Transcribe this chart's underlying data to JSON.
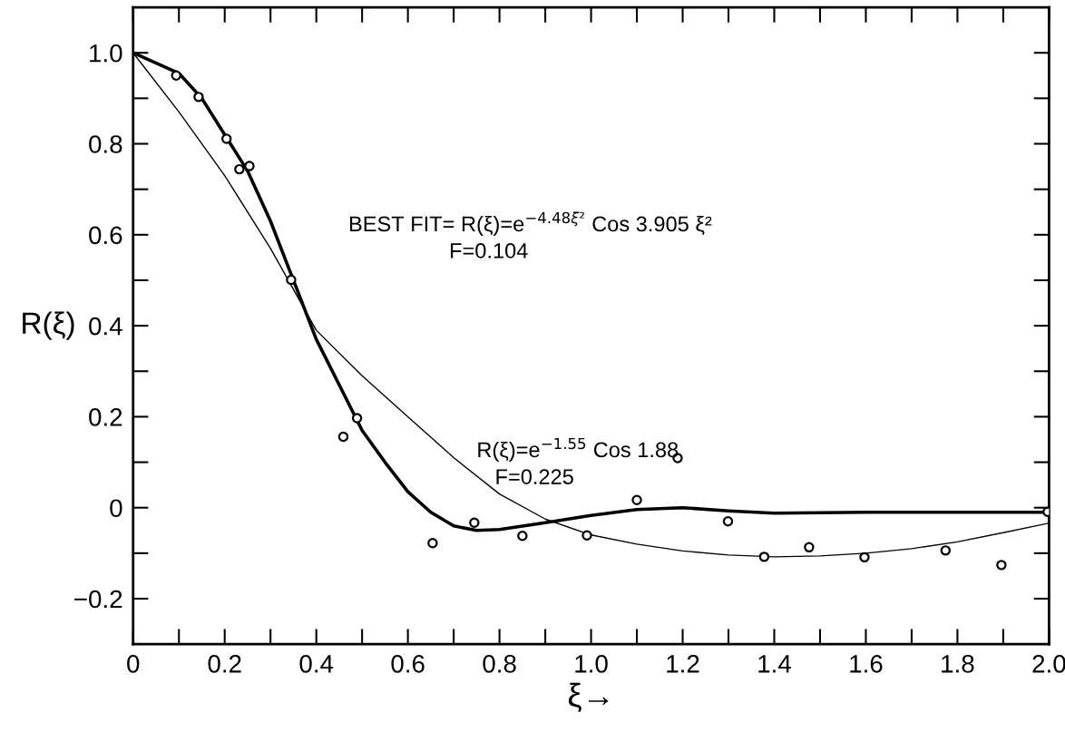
{
  "chart_data": {
    "type": "line",
    "xlabel": "ξ→",
    "ylabel": "R(ξ)",
    "xlim": [
      0,
      2.0
    ],
    "ylim": [
      -0.3,
      1.1
    ],
    "xticks": [
      0,
      0.2,
      0.4,
      0.6,
      0.8,
      {
        "value": 1.0,
        "label": "1.0"
      },
      1.2,
      1.4,
      1.6,
      1.8,
      {
        "value": 2.0,
        "label": "2.0"
      }
    ],
    "yticks": [
      {
        "value": -0.2,
        "label": "−0.2"
      },
      0,
      0.2,
      0.4,
      0.6,
      0.8,
      {
        "value": 1.0,
        "label": "1.0"
      }
    ],
    "grid": false,
    "legend": false,
    "annotations": [
      "BEST FIT= R(ξ)=e$^{−4.48ξ²}$ Cos 3.905 ξ²",
      "F=0.104",
      "R(ξ)=e$^{−1.55}$ Cos 1.88",
      "F=0.225"
    ],
    "series": [
      {
        "type": "scatter",
        "color": "#000000",
        "marker": "circle",
        "x": [
          0.094,
          0.143,
          0.204,
          0.232,
          0.254,
          0.345,
          0.459,
          0.489,
          0.654,
          0.745,
          0.85,
          0.991,
          1.1,
          1.189,
          1.299,
          1.378,
          1.476,
          1.597,
          1.774,
          1.896,
          1.997
        ],
        "values": [
          0.95,
          0.903,
          0.811,
          0.744,
          0.751,
          0.501,
          0.156,
          0.197,
          -0.078,
          -0.033,
          -0.062,
          -0.061,
          0.017,
          0.109,
          -0.03,
          -0.108,
          -0.087,
          -0.109,
          -0.094,
          -0.126,
          -0.009
        ]
      },
      {
        "color": "#000000",
        "line_style": "solid",
        "marker": "none",
        "x": [
          0,
          0.1,
          0.15,
          0.2,
          0.25,
          0.3,
          0.35,
          0.4,
          0.45,
          0.5,
          0.55,
          0.6,
          0.65,
          0.7,
          0.75,
          0.8,
          0.9,
          1.0,
          1.1,
          1.2,
          1.3,
          1.4,
          1.6,
          1.8,
          2.0
        ],
        "values": [
          1.0,
          0.955,
          0.9,
          0.82,
          0.74,
          0.63,
          0.5,
          0.37,
          0.27,
          0.17,
          0.1,
          0.035,
          -0.01,
          -0.04,
          -0.05,
          -0.048,
          -0.033,
          -0.017,
          -0.004,
          0.0,
          -0.007,
          -0.012,
          -0.01,
          -0.01,
          -0.01
        ]
      },
      {
        "color": "#000000",
        "line_style": "solid",
        "marker": "none",
        "x": [
          0,
          0.1,
          0.2,
          0.3,
          0.4,
          0.5,
          0.6,
          0.7,
          0.8,
          0.9,
          1.0,
          1.1,
          1.2,
          1.3,
          1.4,
          1.5,
          1.6,
          1.7,
          1.8,
          1.9,
          2.0
        ],
        "values": [
          1.0,
          0.87,
          0.73,
          0.57,
          0.39,
          0.29,
          0.2,
          0.11,
          0.03,
          -0.025,
          -0.06,
          -0.08,
          -0.095,
          -0.104,
          -0.108,
          -0.106,
          -0.1,
          -0.09,
          -0.075,
          -0.055,
          -0.034
        ]
      }
    ]
  }
}
